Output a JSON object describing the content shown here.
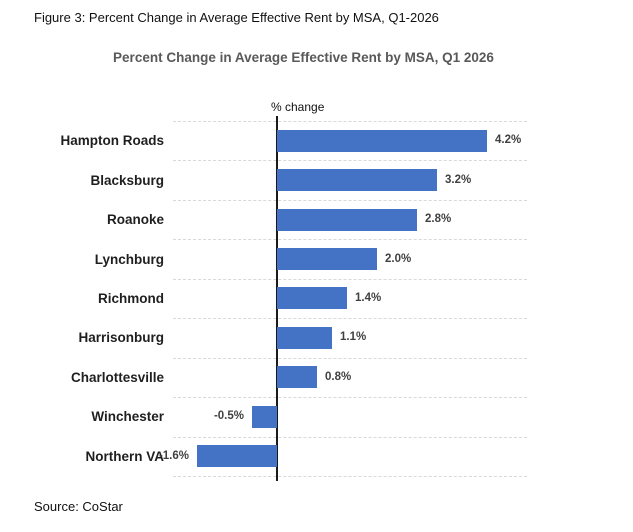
{
  "figure": {
    "caption": "Figure 3: Percent Change in Average Effective Rent by MSA, Q1-2026",
    "source": "Source: CoStar"
  },
  "chart_data": {
    "type": "bar",
    "orientation": "horizontal",
    "title": "Percent Change in Average Effective Rent by MSA, Q1 2026",
    "axis_label": "% change",
    "categories": [
      "Hampton Roads",
      "Blacksburg",
      "Roanoke",
      "Lynchburg",
      "Richmond",
      "Harrisonburg",
      "Charlottesville",
      "Winchester",
      "Northern VA"
    ],
    "values": [
      4.2,
      3.2,
      2.8,
      2.0,
      1.4,
      1.1,
      0.8,
      -0.5,
      -1.6
    ],
    "data_labels": [
      "4.2%",
      "3.2%",
      "2.8%",
      "2.0%",
      "1.4%",
      "1.1%",
      "0.8%",
      "-0.5%",
      "-1.6%"
    ],
    "xlim": [
      -2,
      5
    ],
    "grid": true,
    "legend": false,
    "colors": {
      "bar": "#4472C4",
      "title": "#595959",
      "data_label": "#404040",
      "category_label": "#1f1f1f",
      "gridline": "#d9d9d9",
      "axis": "#1a1a1a"
    }
  }
}
